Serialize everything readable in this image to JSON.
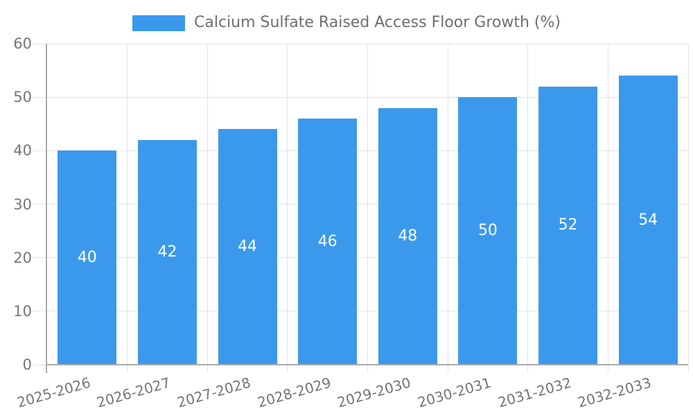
{
  "chart_data": {
    "type": "bar",
    "title": "Calcium Sulfate Raised Access Floor Growth (%)",
    "legend": {
      "label": "Calcium Sulfate Raised Access Floor Growth (%)",
      "position": "top"
    },
    "categories": [
      "2025-2026",
      "2026-2027",
      "2027-2028",
      "2028-2029",
      "2029-2030",
      "2030-2031",
      "2031-2032",
      "2032-2033"
    ],
    "series": [
      {
        "name": "Calcium Sulfate Raised Access Floor Growth (%)",
        "values": [
          40,
          42,
          44,
          46,
          48,
          50,
          52,
          54
        ]
      }
    ],
    "xlabel": "",
    "ylabel": "",
    "ylim": [
      0,
      60
    ],
    "yticks": [
      0,
      10,
      20,
      30,
      40,
      50,
      60
    ],
    "grid": true,
    "value_labels_shown": true,
    "x_label_rotation_deg": -16,
    "colors": {
      "bar": "#3B99EC",
      "grid": "#E4E4E4",
      "axis": "#A9A9A9",
      "tick_label": "#757575",
      "legend_text": "#6E6E6E",
      "value_label": "#FFFFFF",
      "background": "#FFFFFF"
    }
  }
}
